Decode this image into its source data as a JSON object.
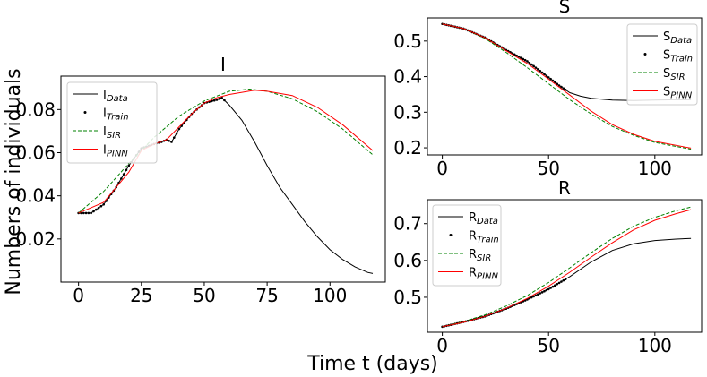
{
  "figure": {
    "xlabel": "Time t (days)",
    "ylabel": "Numbers of individuals"
  },
  "chart_data": [
    {
      "id": "I",
      "type": "line",
      "title": "I",
      "xlim": [
        -7,
        122
      ],
      "ylim": [
        0.0,
        0.0955
      ],
      "xticks": [
        0,
        25,
        50,
        75,
        100
      ],
      "yticks": [
        0.02,
        0.04,
        0.06,
        0.08
      ],
      "legend": [
        "I_Data",
        "I_Train",
        "I_SIR",
        "I_PINN"
      ],
      "legend_position": "top-left",
      "series": [
        {
          "name": "I_Data",
          "style": "solid",
          "color": "#000000",
          "points": [
            [
              0,
              0.032
            ],
            [
              5,
              0.032
            ],
            [
              10,
              0.036
            ],
            [
              15,
              0.044
            ],
            [
              20,
              0.054
            ],
            [
              25,
              0.062
            ],
            [
              30,
              0.064
            ],
            [
              33,
              0.065
            ],
            [
              35,
              0.066
            ],
            [
              37,
              0.065
            ],
            [
              40,
              0.071
            ],
            [
              45,
              0.078
            ],
            [
              50,
              0.083
            ],
            [
              55,
              0.0845
            ],
            [
              57,
              0.0855
            ],
            [
              60,
              0.082
            ],
            [
              65,
              0.075
            ],
            [
              70,
              0.065
            ],
            [
              75,
              0.054
            ],
            [
              80,
              0.044
            ],
            [
              85,
              0.036
            ],
            [
              90,
              0.028
            ],
            [
              95,
              0.021
            ],
            [
              100,
              0.015
            ],
            [
              105,
              0.0105
            ],
            [
              110,
              0.007
            ],
            [
              115,
              0.0045
            ],
            [
              117,
              0.004
            ]
          ]
        },
        {
          "name": "I_Train",
          "style": "dots",
          "color": "#000000",
          "x_range": [
            0,
            58
          ]
        },
        {
          "name": "I_SIR",
          "style": "dashed",
          "color": "#008000",
          "points": [
            [
              0,
              0.032
            ],
            [
              10,
              0.042
            ],
            [
              20,
              0.055
            ],
            [
              30,
              0.067
            ],
            [
              40,
              0.077
            ],
            [
              50,
              0.084
            ],
            [
              60,
              0.0885
            ],
            [
              68,
              0.0895
            ],
            [
              75,
              0.0885
            ],
            [
              85,
              0.085
            ],
            [
              95,
              0.079
            ],
            [
              105,
              0.071
            ],
            [
              117,
              0.059
            ]
          ]
        },
        {
          "name": "I_PINN",
          "style": "solid",
          "color": "#ff0000",
          "points": [
            [
              0,
              0.032
            ],
            [
              10,
              0.037
            ],
            [
              20,
              0.051
            ],
            [
              25,
              0.061
            ],
            [
              30,
              0.064
            ],
            [
              35,
              0.066
            ],
            [
              40,
              0.072
            ],
            [
              45,
              0.078
            ],
            [
              50,
              0.083
            ],
            [
              55,
              0.0855
            ],
            [
              60,
              0.087
            ],
            [
              70,
              0.089
            ],
            [
              75,
              0.0885
            ],
            [
              85,
              0.0865
            ],
            [
              95,
              0.081
            ],
            [
              105,
              0.073
            ],
            [
              117,
              0.061
            ]
          ]
        }
      ]
    },
    {
      "id": "S",
      "type": "line",
      "title": "S",
      "xlim": [
        -7,
        122
      ],
      "ylim": [
        0.18,
        0.565
      ],
      "xticks": [
        0,
        50,
        100
      ],
      "yticks": [
        0.2,
        0.3,
        0.4,
        0.5
      ],
      "legend": [
        "S_Data",
        "S_Train",
        "S_SIR",
        "S_PINN"
      ],
      "legend_position": "top-right",
      "series": [
        {
          "name": "S_Data",
          "style": "solid",
          "color": "#000000",
          "points": [
            [
              0,
              0.548
            ],
            [
              10,
              0.535
            ],
            [
              20,
              0.51
            ],
            [
              30,
              0.475
            ],
            [
              40,
              0.443
            ],
            [
              50,
              0.398
            ],
            [
              55,
              0.375
            ],
            [
              60,
              0.355
            ],
            [
              65,
              0.345
            ],
            [
              70,
              0.339
            ],
            [
              80,
              0.334
            ],
            [
              90,
              0.333
            ],
            [
              100,
              0.334
            ],
            [
              110,
              0.335
            ],
            [
              117,
              0.335
            ]
          ]
        },
        {
          "name": "S_Train",
          "style": "dots",
          "color": "#000000",
          "x_range": [
            0,
            58
          ]
        },
        {
          "name": "S_SIR",
          "style": "dashed",
          "color": "#008000",
          "points": [
            [
              0,
              0.548
            ],
            [
              10,
              0.535
            ],
            [
              20,
              0.508
            ],
            [
              30,
              0.468
            ],
            [
              40,
              0.425
            ],
            [
              50,
              0.38
            ],
            [
              60,
              0.335
            ],
            [
              70,
              0.295
            ],
            [
              80,
              0.26
            ],
            [
              90,
              0.235
            ],
            [
              100,
              0.215
            ],
            [
              117,
              0.196
            ]
          ]
        },
        {
          "name": "S_PINN",
          "style": "solid",
          "color": "#ff0000",
          "points": [
            [
              0,
              0.548
            ],
            [
              10,
              0.535
            ],
            [
              20,
              0.51
            ],
            [
              30,
              0.473
            ],
            [
              40,
              0.437
            ],
            [
              50,
              0.393
            ],
            [
              60,
              0.348
            ],
            [
              70,
              0.303
            ],
            [
              80,
              0.265
            ],
            [
              90,
              0.238
            ],
            [
              100,
              0.218
            ],
            [
              117,
              0.199
            ]
          ]
        }
      ]
    },
    {
      "id": "R",
      "type": "line",
      "title": "R",
      "xlim": [
        -7,
        122
      ],
      "ylim": [
        0.405,
        0.765
      ],
      "xticks": [
        0,
        50,
        100
      ],
      "yticks": [
        0.5,
        0.6,
        0.7
      ],
      "legend": [
        "R_Data",
        "R_Train",
        "R_SIR",
        "R_PINN"
      ],
      "legend_position": "top-left",
      "series": [
        {
          "name": "R_Data",
          "style": "solid",
          "color": "#000000",
          "points": [
            [
              0,
              0.42
            ],
            [
              10,
              0.433
            ],
            [
              20,
              0.448
            ],
            [
              30,
              0.469
            ],
            [
              40,
              0.494
            ],
            [
              50,
              0.522
            ],
            [
              60,
              0.556
            ],
            [
              70,
              0.596
            ],
            [
              80,
              0.627
            ],
            [
              90,
              0.645
            ],
            [
              100,
              0.654
            ],
            [
              110,
              0.658
            ],
            [
              117,
              0.66
            ]
          ]
        },
        {
          "name": "R_Train",
          "style": "dots",
          "color": "#000000",
          "x_range": [
            0,
            58
          ]
        },
        {
          "name": "R_SIR",
          "style": "dashed",
          "color": "#008000",
          "points": [
            [
              0,
              0.42
            ],
            [
              10,
              0.434
            ],
            [
              20,
              0.452
            ],
            [
              30,
              0.476
            ],
            [
              40,
              0.505
            ],
            [
              50,
              0.54
            ],
            [
              60,
              0.58
            ],
            [
              70,
              0.621
            ],
            [
              80,
              0.66
            ],
            [
              90,
              0.693
            ],
            [
              100,
              0.717
            ],
            [
              110,
              0.735
            ],
            [
              117,
              0.745
            ]
          ]
        },
        {
          "name": "R_PINN",
          "style": "solid",
          "color": "#ff0000",
          "points": [
            [
              0,
              0.42
            ],
            [
              10,
              0.432
            ],
            [
              20,
              0.448
            ],
            [
              30,
              0.47
            ],
            [
              40,
              0.497
            ],
            [
              50,
              0.53
            ],
            [
              60,
              0.568
            ],
            [
              70,
              0.609
            ],
            [
              80,
              0.648
            ],
            [
              90,
              0.683
            ],
            [
              100,
              0.709
            ],
            [
              110,
              0.727
            ],
            [
              117,
              0.738
            ]
          ]
        }
      ]
    }
  ]
}
